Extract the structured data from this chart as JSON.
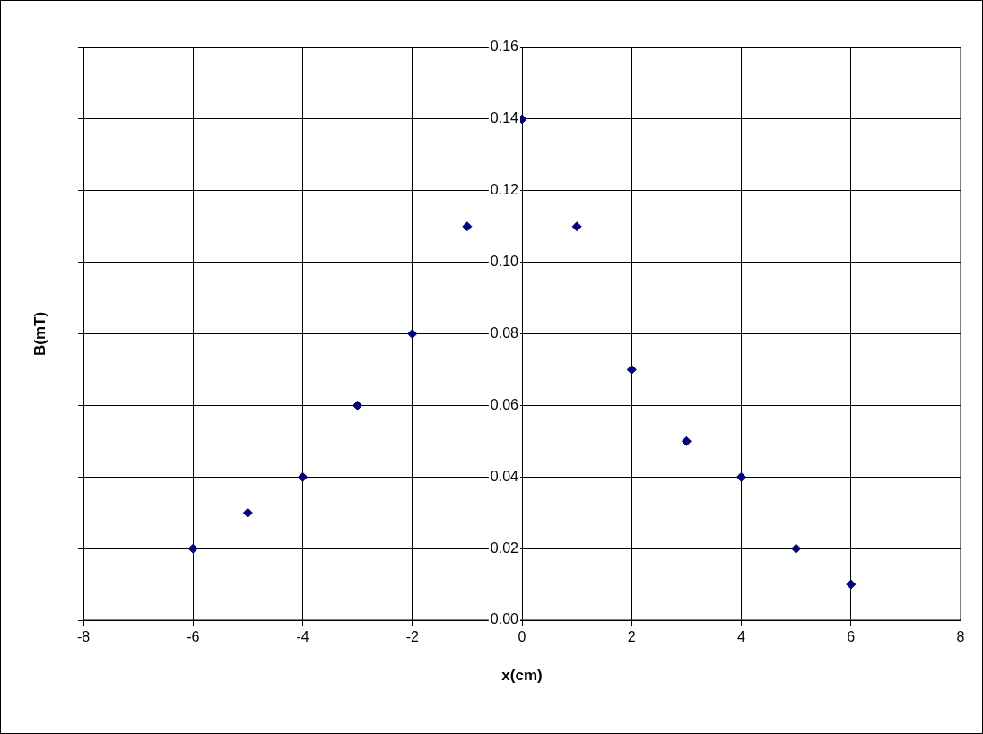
{
  "chart_data": {
    "type": "scatter",
    "xlabel": "x(cm)",
    "ylabel": "B(mT)",
    "x": [
      -6,
      -5,
      -4,
      -3,
      -2,
      -1,
      0,
      1,
      2,
      3,
      4,
      5,
      6
    ],
    "series": [
      {
        "color": "#000080",
        "values": [
          0.02,
          0.03,
          0.04,
          0.06,
          0.08,
          0.11,
          0.14,
          0.11,
          0.07,
          0.05,
          0.04,
          0.02,
          0.01
        ]
      }
    ],
    "xlim": [
      -8,
      8
    ],
    "xticks": [
      -8,
      -6,
      -4,
      -2,
      0,
      2,
      4,
      6,
      8
    ],
    "ylim": [
      0,
      0.16
    ],
    "yticks": [
      {
        "value": 0,
        "label": "0.00"
      },
      {
        "value": 0.02,
        "label": "0.02"
      },
      {
        "value": 0.04,
        "label": "0.04"
      },
      {
        "value": 0.06,
        "label": "0.06"
      },
      {
        "value": 0.08,
        "label": "0.08"
      },
      {
        "value": 0.1,
        "label": "0.10"
      },
      {
        "value": 0.12,
        "label": "0.12"
      },
      {
        "value": 0.14,
        "label": "0.14"
      },
      {
        "value": 0.16,
        "label": "0.16"
      }
    ],
    "grid": true,
    "legend": false,
    "marker": "diamond"
  }
}
